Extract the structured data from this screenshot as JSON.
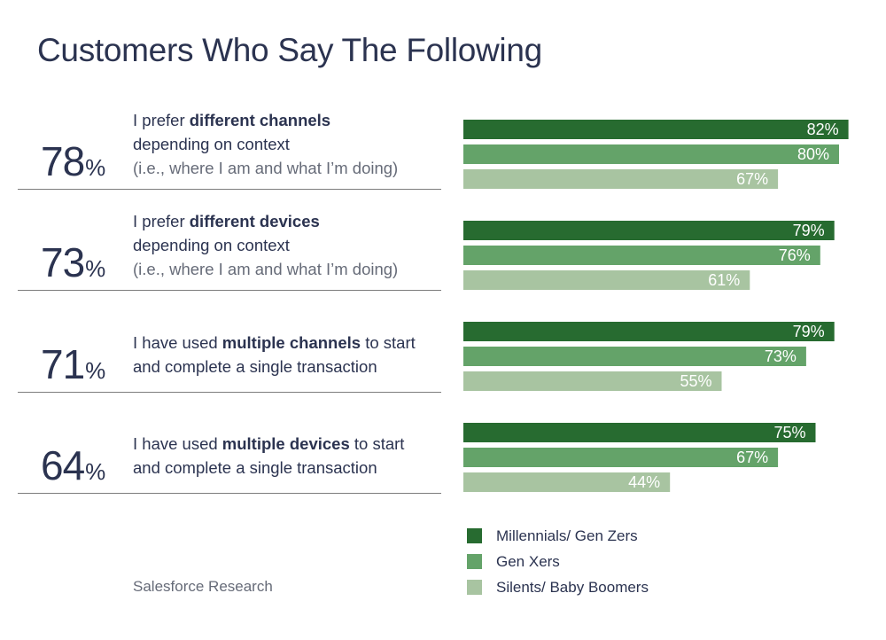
{
  "title": "Customers Who Say The Following",
  "rows": [
    {
      "overall": "78",
      "pct_sign": "%",
      "line1_pre": "I prefer ",
      "line1_bold": "different channels",
      "line1_post": "",
      "line2": "depending on context",
      "line3": "(i.e., where I am and what I’m doing)"
    },
    {
      "overall": "73",
      "pct_sign": "%",
      "line1_pre": "I prefer ",
      "line1_bold": "different devices",
      "line1_post": "",
      "line2": "depending on context",
      "line3": "(i.e., where I am and what I’m doing)"
    },
    {
      "overall": "71",
      "pct_sign": "%",
      "line1_pre": "I have used ",
      "line1_bold": "multiple channels",
      "line1_post": " to start",
      "line2": "and complete a single transaction",
      "line3": ""
    },
    {
      "overall": "64",
      "pct_sign": "%",
      "line1_pre": "I have used ",
      "line1_bold": "multiple devices",
      "line1_post": " to start",
      "line2": "and complete a single transaction",
      "line3": ""
    }
  ],
  "source": "Salesforce Research",
  "chart_data": {
    "type": "bar",
    "orientation": "horizontal",
    "title": "Customers Who Say The Following",
    "categories": [
      "I prefer different channels depending on context (i.e., where I am and what I’m doing)",
      "I prefer different devices depending on context (i.e., where I am and what I’m doing)",
      "I have used multiple channels to start and complete a single transaction",
      "I have used multiple devices to start and complete a single transaction"
    ],
    "overall_values": [
      78,
      73,
      71,
      64
    ],
    "series": [
      {
        "name": "Millennials/ Gen Zers",
        "color": "#276b30",
        "values": [
          82,
          79,
          79,
          75
        ]
      },
      {
        "name": "Gen Xers",
        "color": "#64a369",
        "values": [
          80,
          76,
          73,
          67
        ]
      },
      {
        "name": "Silents/ Baby Boomers",
        "color": "#a8c4a1",
        "values": [
          67,
          61,
          55,
          44
        ]
      }
    ],
    "value_suffix": "%",
    "xlim": [
      0,
      100
    ],
    "grid": false,
    "legend_position": "bottom-right"
  }
}
